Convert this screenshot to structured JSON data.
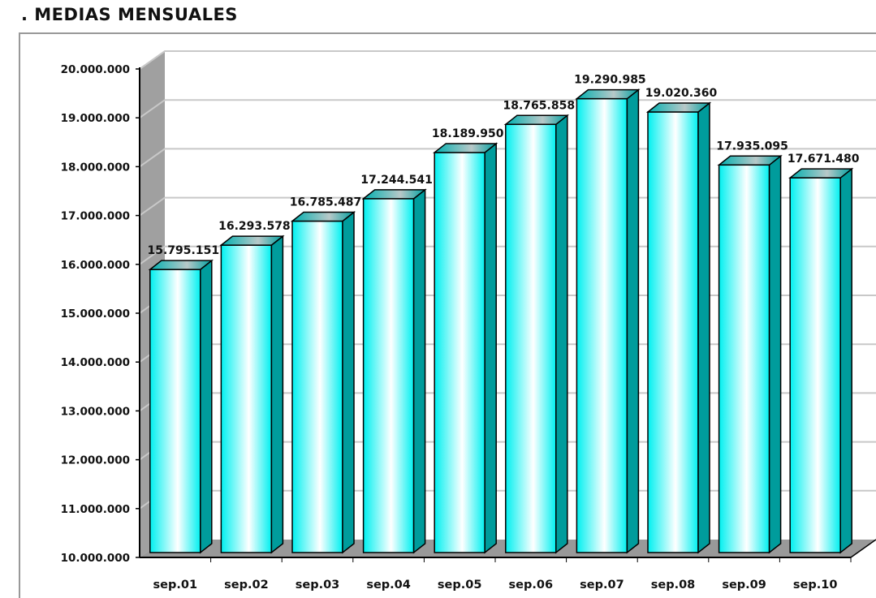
{
  "chart_data": {
    "type": "bar",
    "title": ". MEDIAS MENSUALES",
    "xlabel": "",
    "ylabel": "",
    "categories": [
      "sep.01",
      "sep.02",
      "sep.03",
      "sep.04",
      "sep.05",
      "sep.06",
      "sep.07",
      "sep.08",
      "sep.09",
      "sep.10"
    ],
    "values": [
      15795151,
      16293578,
      16785487,
      17244541,
      18189950,
      18765858,
      19290985,
      19020360,
      17935095,
      17671480
    ],
    "value_labels": [
      "15.795.151",
      "16.293.578",
      "16.785.487",
      "17.244.541",
      "18.189.950",
      "18.765.858",
      "19.290.985",
      "19.020.360",
      "17.935.095",
      "17.671.480"
    ],
    "ylim": [
      10000000,
      20000000
    ],
    "yticks": [
      10000000,
      11000000,
      12000000,
      13000000,
      14000000,
      15000000,
      16000000,
      17000000,
      18000000,
      19000000,
      20000000
    ],
    "ytick_labels": [
      "10.000.000",
      "11.000.000",
      "12.000.000",
      "13.000.000",
      "14.000.000",
      "15.000.000",
      "16.000.000",
      "17.000.000",
      "18.000.000",
      "19.000.000",
      "20.000.000"
    ],
    "grid": true,
    "legend": "none",
    "colors": {
      "front": "#00ffff",
      "side": "#009c9c",
      "floor": "#999999",
      "wall": "#a0a0a0"
    }
  }
}
